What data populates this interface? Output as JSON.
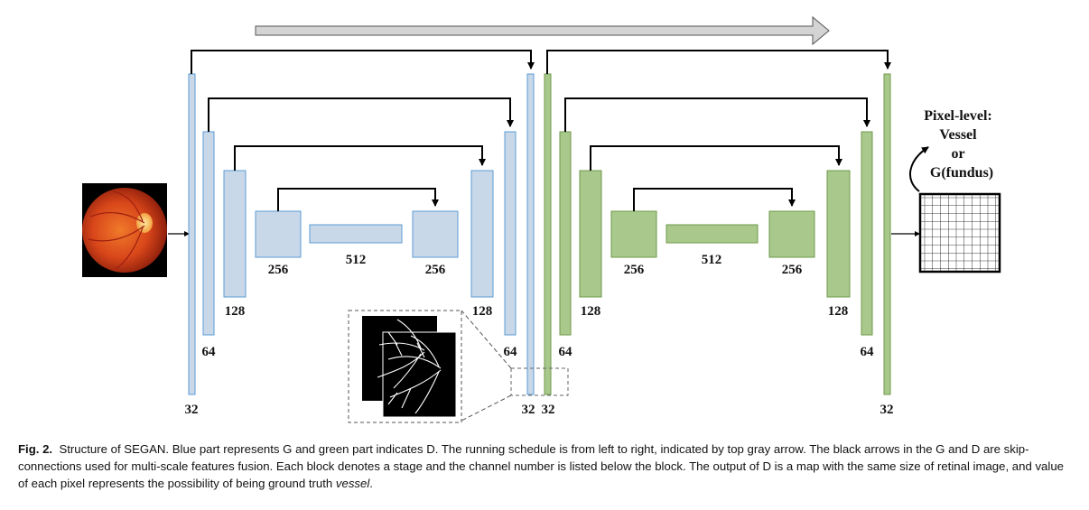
{
  "colors": {
    "generator": "#c9d8e8",
    "generator_edge": "#5b9bd5",
    "discriminator": "#a9c88c",
    "discriminator_edge": "#6f9a4a",
    "schedule_arrow": "#d4d4d4"
  },
  "generator": {
    "labels": {
      "c32_left": "32",
      "c64_left": "64",
      "c128_left": "128",
      "c256_left": "256",
      "c512": "512",
      "c256_right": "256",
      "c128_right": "128",
      "c64_right": "64",
      "c32_right": "32"
    }
  },
  "discriminator": {
    "labels": {
      "c32_left": "32",
      "c64_left": "64",
      "c128_left": "128",
      "c256_left": "256",
      "c512": "512",
      "c256_right": "256",
      "c128_right": "128",
      "c64_right": "64",
      "c32_right": "32"
    }
  },
  "output_label": {
    "line1": "Pixel-level:",
    "line2": "Vessel",
    "line3": "or",
    "line4": "G(fundus)"
  },
  "caption": {
    "fig_label": "Fig. 2.",
    "text_main": "Structure of SEGAN. Blue part represents G and green part indicates D. The running schedule is from left to right, indicated by top gray arrow. The black arrows in the G and D are skip-connections used for multi-scale features fusion. Each block denotes a stage and the channel number is listed below the block. The output of D is a map with the same size of retinal image, and value of each pixel represents the possibility of being ground truth ",
    "text_italic": "vessel",
    "text_end": "."
  }
}
